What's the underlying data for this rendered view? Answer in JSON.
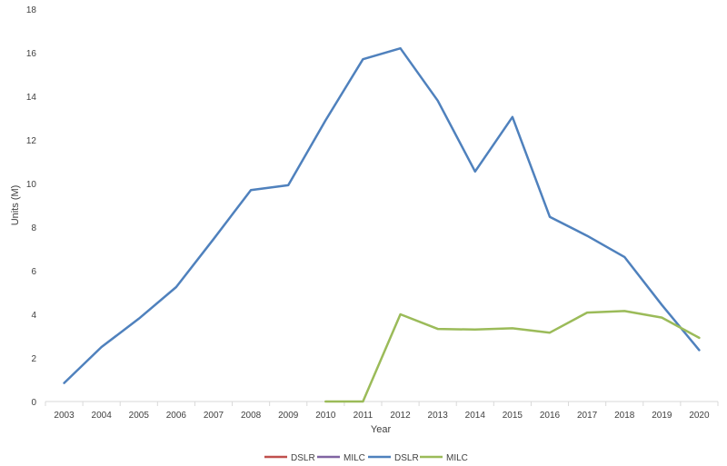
{
  "chart_data": {
    "type": "line",
    "xlabel": "Year",
    "ylabel": "Units (M)",
    "ylim": [
      0,
      18
    ],
    "yticks": [
      0,
      2,
      4,
      6,
      8,
      10,
      12,
      14,
      16,
      18
    ],
    "grid": false,
    "legend_position": "bottom",
    "categories": [
      "2003",
      "2004",
      "2005",
      "2006",
      "2007",
      "2008",
      "2009",
      "2010",
      "2011",
      "2012",
      "2013",
      "2014",
      "2015",
      "2016",
      "2017",
      "2018",
      "2019",
      "2020"
    ],
    "series": [
      {
        "name": "DSLR",
        "color": "#c0504d",
        "values": [
          null,
          null,
          null,
          null,
          null,
          null,
          null,
          null,
          null,
          null,
          null,
          null,
          null,
          null,
          null,
          null,
          null,
          null
        ]
      },
      {
        "name": "MILC",
        "color": "#8064a2",
        "values": [
          null,
          null,
          null,
          null,
          null,
          null,
          null,
          null,
          null,
          null,
          null,
          null,
          null,
          null,
          null,
          null,
          null,
          null
        ]
      },
      {
        "name": "DSLR",
        "color": "#4f81bd",
        "values": [
          0.85,
          2.5,
          3.8,
          5.25,
          7.45,
          9.7,
          9.92,
          12.9,
          15.7,
          16.2,
          13.8,
          10.55,
          13.05,
          8.47,
          7.6,
          6.63,
          4.43,
          2.36
        ]
      },
      {
        "name": "MILC",
        "color": "#9bbb59",
        "values": [
          null,
          null,
          null,
          null,
          null,
          null,
          null,
          0.0,
          0.0,
          4.0,
          3.33,
          3.3,
          3.36,
          3.16,
          4.08,
          4.15,
          3.85,
          2.92
        ]
      }
    ]
  }
}
